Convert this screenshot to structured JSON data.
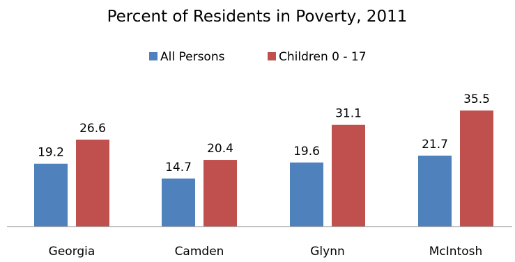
{
  "chart_data": {
    "type": "bar",
    "title": "Percent of Residents in Poverty, 2011",
    "categories": [
      "Georgia",
      "Camden",
      "Glynn",
      "McIntosh"
    ],
    "series": [
      {
        "name": "All Persons",
        "color": "#4F81BD",
        "values": [
          19.2,
          14.7,
          19.6,
          21.7
        ]
      },
      {
        "name": "Children 0 - 17",
        "color": "#C0504D",
        "values": [
          26.6,
          20.4,
          31.1,
          35.5
        ]
      }
    ],
    "legend_position": "top",
    "grid": false,
    "y_axis_visible": false,
    "ylim": [
      0,
      40
    ],
    "xlabel": "",
    "ylabel": ""
  }
}
